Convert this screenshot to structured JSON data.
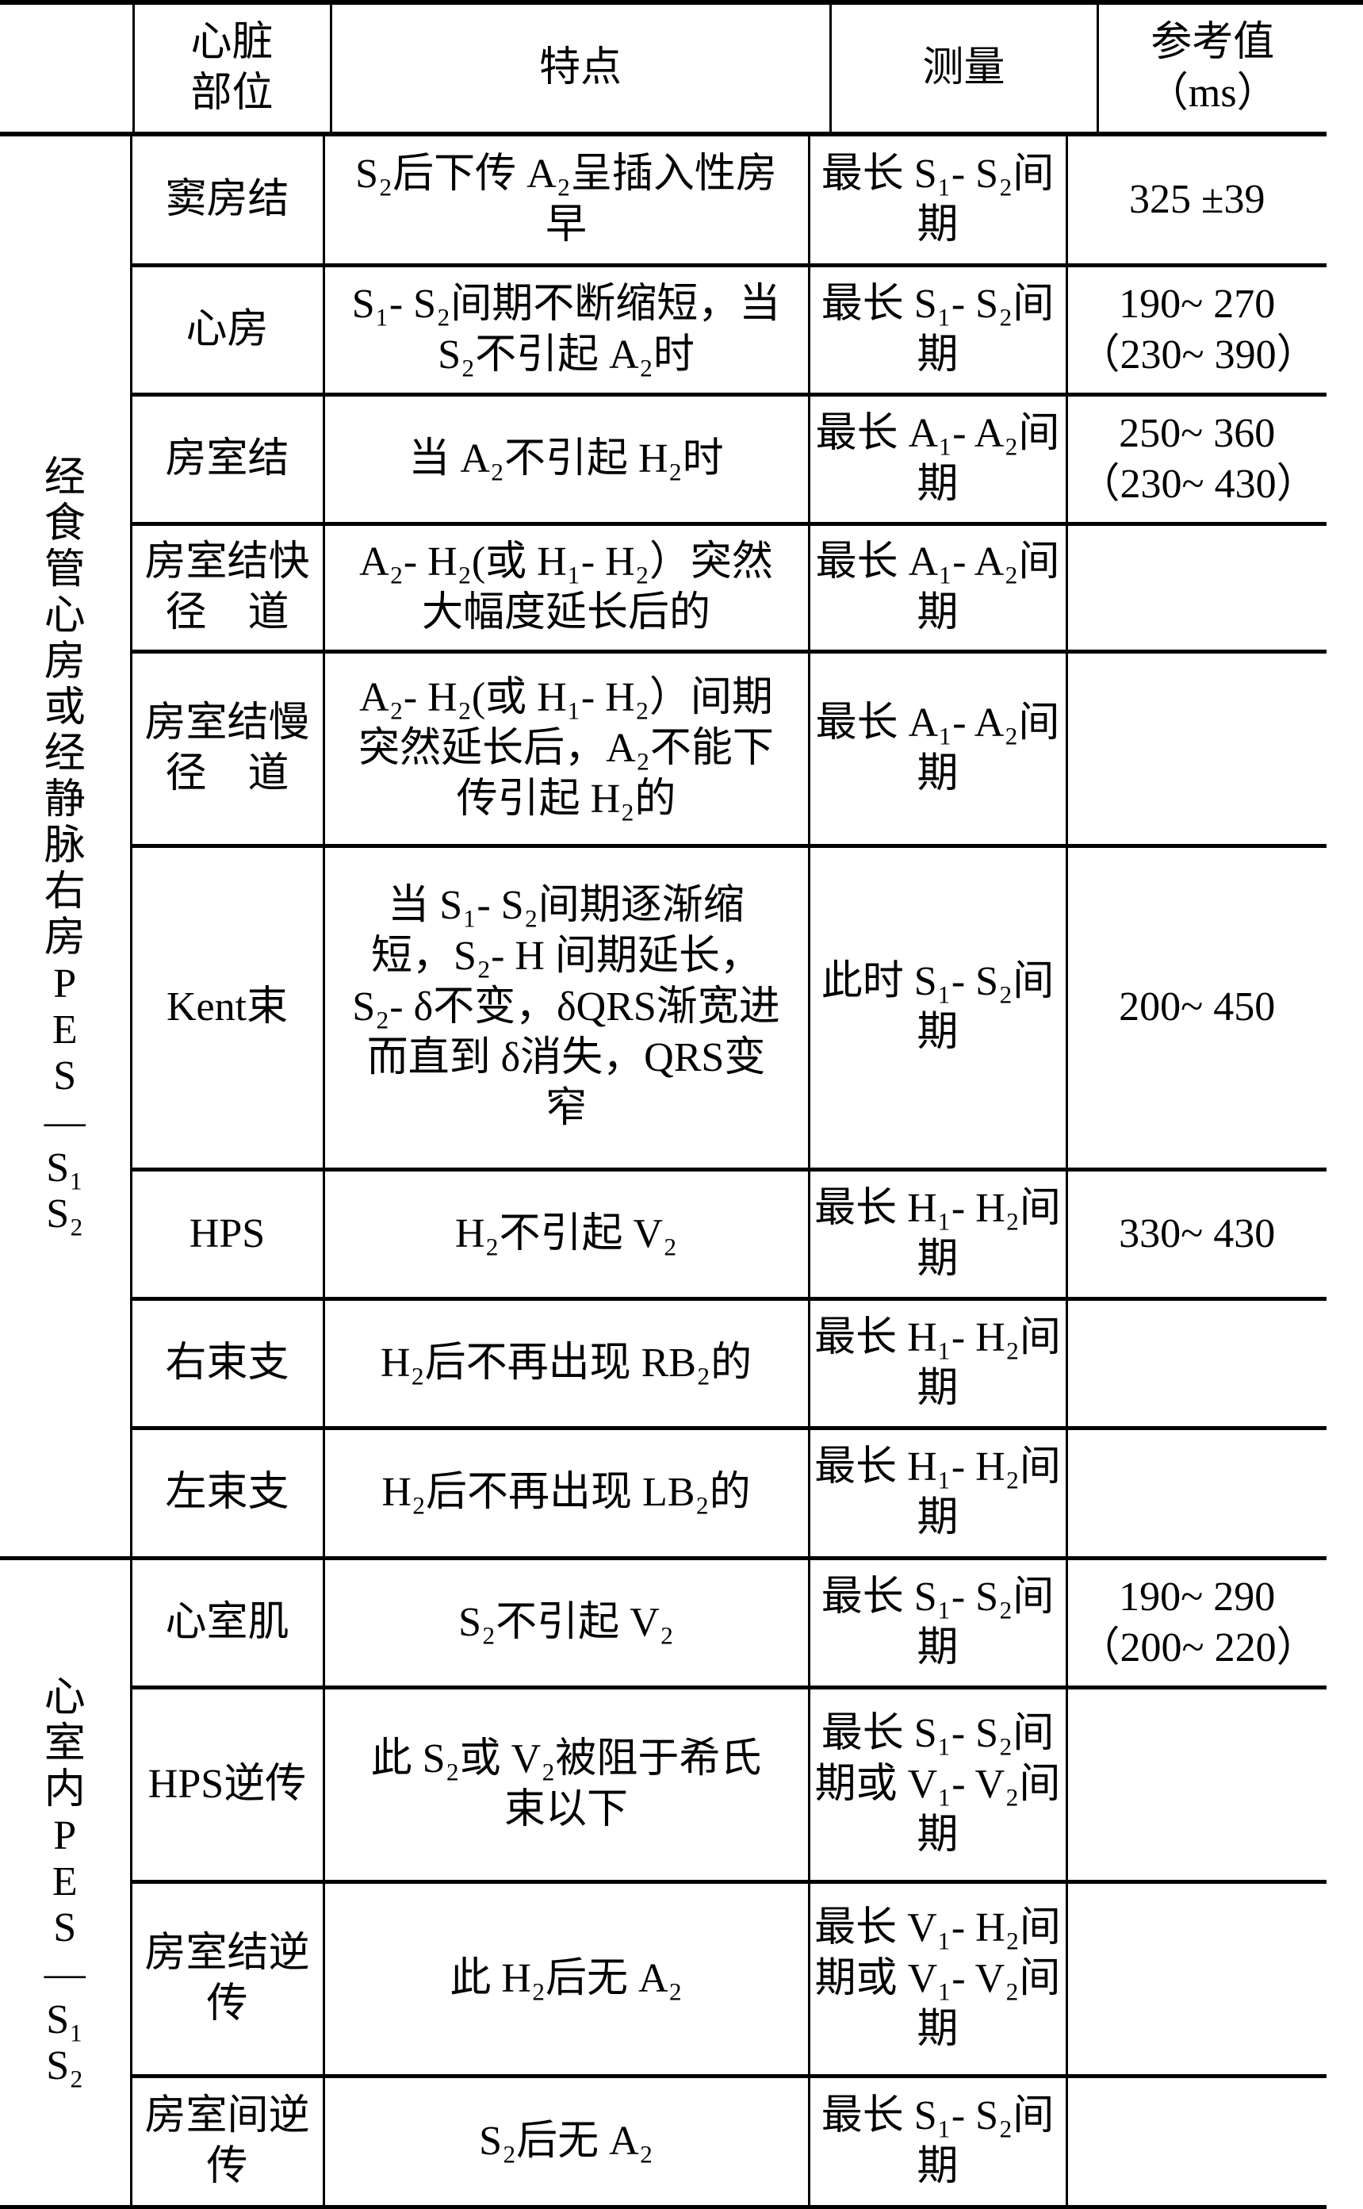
{
  "header": {
    "blank": "",
    "part": "心脏部位",
    "feature": "特点",
    "measure": "测量",
    "reference": "参考值（ms）"
  },
  "groups": [
    {
      "label": "经食管心房或经静脉右房PES—S₁S₂"
    },
    {
      "label": "心室内PES—S₁S₂"
    }
  ],
  "rows": [
    {
      "part": "窦房结",
      "feature": "S₂后下传 A₂呈插入性房早",
      "measure": "最长 S₁- S₂间期",
      "reference": "325 ±39"
    },
    {
      "part": "心房",
      "feature": "S₁- S₂间期不断缩短，当 S₂不引起 A₂时",
      "measure": "最长 S₁- S₂间期",
      "reference": "190~ 270（230~ 390）"
    },
    {
      "part": "房室结",
      "feature": "当 A₂不引起 H₂时",
      "measure": "最长 A₁- A₂间期",
      "reference": "250~ 360（230~ 430）"
    },
    {
      "part": "房室结快径　道",
      "feature": "A₂- H₂(或 H₁- H₂）突然大幅度延长后的",
      "measure": "最长 A₁- A₂间期",
      "reference": ""
    },
    {
      "part": "房室结慢径　道",
      "feature": "A₂- H₂(或 H₁- H₂）间期突然延长后，A₂不能下传引起 H₂的",
      "measure": "最长 A₁- A₂间期",
      "reference": ""
    },
    {
      "part": "Kent束",
      "feature": "当 S₁- S₂间期逐渐缩短，S₂- H 间期延长，S₂- δ不变，δQRS渐宽进而直到 δ消失，QRS变窄",
      "measure": "此时 S₁- S₂间期",
      "reference": "200~ 450"
    },
    {
      "part": "HPS",
      "feature": "H₂不引起 V₂",
      "measure": "最长 H₁- H₂间期",
      "reference": "330~ 430"
    },
    {
      "part": "右束支",
      "feature": "H₂后不再出现 RB₂的",
      "measure": "最长 H₁- H₂间期",
      "reference": ""
    },
    {
      "part": "左束支",
      "feature": "H₂后不再出现 LB₂的",
      "measure": "最长 H₁- H₂间期",
      "reference": ""
    },
    {
      "part": "心室肌",
      "feature": "S₂不引起 V₂",
      "measure": "最长 S₁- S₂间期",
      "reference": "190~ 290（200~ 220）"
    },
    {
      "part": "HPS逆传",
      "feature": "此 S₂或 V₂被阻于希氏束以下",
      "measure": "最长 S₁- S₂间期或 V₁- V₂间期",
      "reference": ""
    },
    {
      "part": "房室结逆传",
      "feature": "此 H₂后无 A₂",
      "measure": "最长 V₁- H₂间期或 V₁- V₂间期",
      "reference": ""
    },
    {
      "part": "房室间逆传",
      "feature": "S₂后无 A₂",
      "measure": "最长 S₁- S₂间期",
      "reference": ""
    }
  ]
}
